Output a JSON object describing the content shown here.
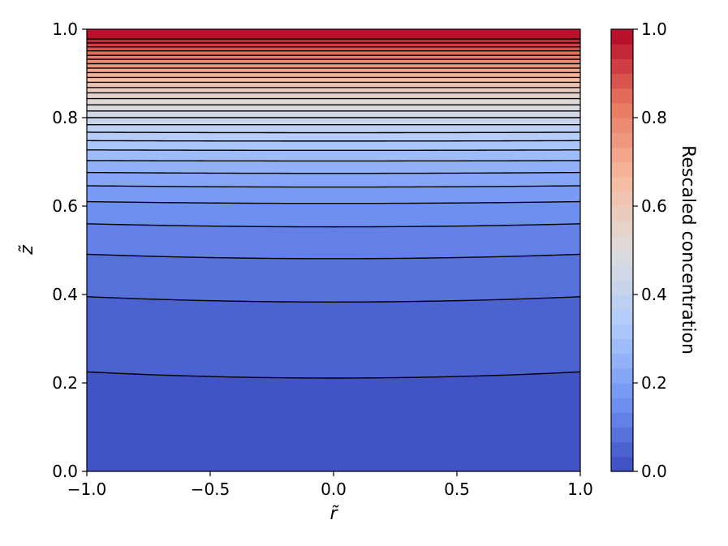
{
  "chart_data": {
    "type": "heatmap",
    "subtype": "filled-contour",
    "title": "",
    "xlabel": "r̃",
    "ylabel": "z̃",
    "xlim": [
      -1.0,
      1.0
    ],
    "ylim": [
      0.0,
      1.0
    ],
    "xticks": [
      -1.0,
      -0.5,
      0.0,
      0.5,
      1.0
    ],
    "xtick_labels": [
      "−1.0",
      "−0.5",
      "0.0",
      "0.5",
      "1.0"
    ],
    "yticks": [
      0.0,
      0.2,
      0.4,
      0.6,
      0.8,
      1.0
    ],
    "ytick_labels": [
      "0.0",
      "0.2",
      "0.4",
      "0.6",
      "0.8",
      "1.0"
    ],
    "colormap": "coolwarm",
    "colormap_stops": [
      "#3b4cc0",
      "#7396f5",
      "#b0cbfc",
      "#dddcdc",
      "#f6b99e",
      "#e8775f",
      "#b40426"
    ],
    "grid": false,
    "colorbar": {
      "label": "Rescaled concentration",
      "range": [
        0.0,
        1.0
      ],
      "ticks": [
        0.0,
        0.2,
        0.4,
        0.6,
        0.8,
        1.0
      ],
      "tick_labels": [
        "0.0",
        "0.2",
        "0.4",
        "0.6",
        "0.8",
        "1.0"
      ],
      "levels": 30
    },
    "contour_lines": {
      "color": "#000000",
      "description": "Iso-concentration contours; nearly horizontal, bowing slightly downward at r̃ = 0",
      "z_at_center": [
        0.211,
        0.383,
        0.481,
        0.553,
        0.606,
        0.643,
        0.674,
        0.702,
        0.726,
        0.747,
        0.766,
        0.784,
        0.8,
        0.815,
        0.829,
        0.843,
        0.856,
        0.868,
        0.88,
        0.891,
        0.902,
        0.912,
        0.922,
        0.932,
        0.941,
        0.951,
        0.96,
        0.969,
        0.978,
        0.986
      ],
      "z_at_edge": [
        0.225,
        0.395,
        0.491,
        0.56,
        0.61,
        0.646,
        0.676,
        0.703,
        0.727,
        0.748,
        0.767,
        0.784,
        0.8,
        0.815,
        0.829,
        0.843,
        0.856,
        0.868,
        0.88,
        0.891,
        0.902,
        0.912,
        0.922,
        0.932,
        0.941,
        0.951,
        0.96,
        0.969,
        0.978,
        0.986
      ]
    }
  }
}
